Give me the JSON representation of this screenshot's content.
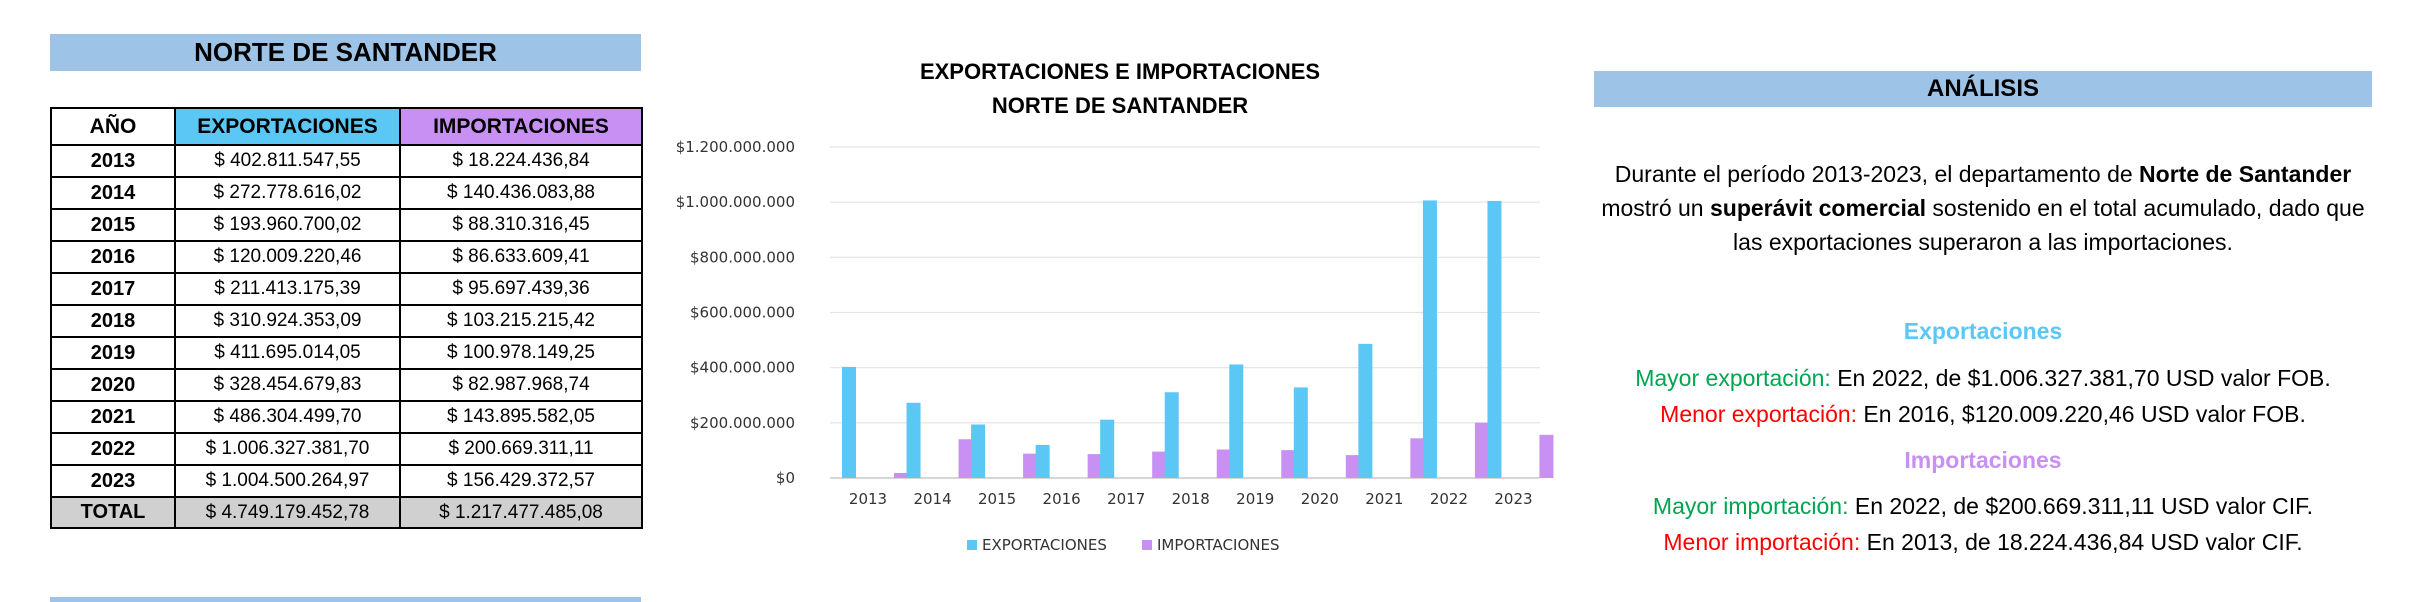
{
  "left": {
    "title": "NORTE DE SANTANDER",
    "headers": [
      "AÑO",
      "EXPORTACIONES",
      "IMPORTACIONES"
    ],
    "rows": [
      [
        "2013",
        "$ 402.811.547,55",
        "$ 18.224.436,84"
      ],
      [
        "2014",
        "$ 272.778.616,02",
        "$ 140.436.083,88"
      ],
      [
        "2015",
        "$ 193.960.700,02",
        "$ 88.310.316,45"
      ],
      [
        "2016",
        "$ 120.009.220,46",
        "$ 86.633.609,41"
      ],
      [
        "2017",
        "$ 211.413.175,39",
        "$ 95.697.439,36"
      ],
      [
        "2018",
        "$ 310.924.353,09",
        "$ 103.215.215,42"
      ],
      [
        "2019",
        "$ 411.695.014,05",
        "$ 100.978.149,25"
      ],
      [
        "2020",
        "$ 328.454.679,83",
        "$ 82.987.968,74"
      ],
      [
        "2021",
        "$ 486.304.499,70",
        "$ 143.895.582,05"
      ],
      [
        "2022",
        "$ 1.006.327.381,70",
        "$ 200.669.311,11"
      ],
      [
        "2023",
        "$ 1.004.500.264,97",
        "$ 156.429.372,57"
      ]
    ],
    "total": [
      "TOTAL",
      "$ 4.749.179.452,78",
      "$ 1.217.477.485,08"
    ]
  },
  "colors": {
    "header_blue": "#9dc3e6",
    "exportaciones": "#5bc7f5",
    "importaciones": "#c890f2",
    "total_gray": "#d0d0d0",
    "green": "#00a550",
    "red": "#ff0000"
  },
  "chart_data": {
    "type": "bar",
    "title": [
      "EXPORTACIONES E IMPORTACIONES",
      "NORTE DE SANTANDER"
    ],
    "categories": [
      "2013",
      "2014",
      "2015",
      "2016",
      "2017",
      "2018",
      "2019",
      "2020",
      "2021",
      "2022",
      "2023"
    ],
    "series": [
      {
        "name": "EXPORTACIONES",
        "values": [
          402811547.55,
          272778616.02,
          193960700.02,
          120009220.46,
          211413175.39,
          310924353.09,
          411695014.05,
          328454679.83,
          486304499.7,
          1006327381.7,
          1004500264.97
        ]
      },
      {
        "name": "IMPORTACIONES",
        "values": [
          18224436.84,
          140436083.88,
          88310316.45,
          86633609.41,
          95697439.36,
          103215215.42,
          100978149.25,
          82987968.74,
          143895582.05,
          200669311.11,
          156429372.57
        ]
      }
    ],
    "yticks": [
      "$0",
      "$200.000.000",
      "$400.000.000",
      "$600.000.000",
      "$800.000.000",
      "$1.000.000.000",
      "$1.200.000.000"
    ],
    "ylim": [
      0,
      1200000000
    ],
    "grid": true,
    "legend": "bottom"
  },
  "analysis": {
    "title": "ANÁLISIS",
    "intro_1": "Durante el período 2013-2023, el departamento de ",
    "intro_bold_1": "Norte de Santander",
    "intro_2": " mostró un ",
    "intro_bold_2": "superávit comercial",
    "intro_3": " sostenido en el total acumulado, dado que las exportaciones superaron a las importaciones.",
    "exp_title": "Exportaciones",
    "max_exp_label": "Mayor exportación:",
    "max_exp_text": " En 2022, de $1.006.327.381,70 USD valor FOB.",
    "min_exp_label": "Menor exportación:",
    "min_exp_text": " En 2016, $120.009.220,46 USD valor FOB.",
    "imp_title": "Importaciones",
    "max_imp_label": "Mayor importación:",
    "max_imp_text": " En 2022, de $200.669.311,11 USD valor CIF.",
    "min_imp_label": "Menor importación:",
    "min_imp_text": " En 2013, de 18.224.436,84 USD valor CIF."
  }
}
